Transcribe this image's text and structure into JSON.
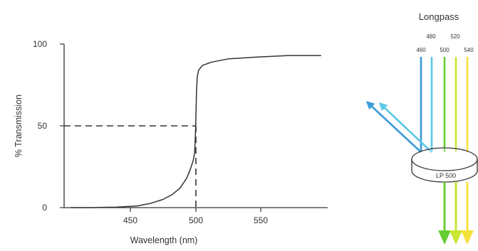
{
  "chart_data": {
    "type": "line",
    "title": "",
    "xlabel": "Wavelength (nm)",
    "ylabel": "% Transmission",
    "xlim": [
      400,
      600
    ],
    "ylim": [
      0,
      100
    ],
    "xticks": [
      450,
      500,
      550
    ],
    "yticks": [
      0,
      50,
      100
    ],
    "tick_labels": {
      "x": [
        "450",
        "500",
        "550"
      ],
      "y": [
        "0",
        "50",
        "100"
      ]
    },
    "grid": false,
    "legend": "none",
    "series": [
      {
        "x": [
          405,
          420,
          440,
          455,
          465,
          475,
          482,
          488,
          493,
          496,
          498,
          499,
          499.5,
          500,
          500.5,
          501,
          502,
          505,
          512,
          525,
          545,
          570,
          595
        ],
        "y": [
          0,
          0,
          0.3,
          1,
          2.5,
          5,
          8,
          12,
          18,
          24,
          29,
          33,
          42,
          55,
          72,
          80,
          84,
          87,
          89,
          91,
          92,
          93,
          93
        ]
      }
    ],
    "reference_lines": {
      "value": 50,
      "cut_on": 500
    },
    "colors": {
      "curve": "#333333",
      "axes": "#333333",
      "dashed": "#333333"
    }
  },
  "diagram": {
    "title": "Longpass",
    "filter_label": "LP 500",
    "beams": [
      {
        "label": "460",
        "color": "#3a9ad9",
        "passed": false
      },
      {
        "label": "480",
        "color": "#5cc8e6",
        "passed": false
      },
      {
        "label": "500",
        "color": "#66cc33",
        "passed": true
      },
      {
        "label": "520",
        "color": "#c8e632",
        "passed": true
      },
      {
        "label": "540",
        "color": "#f5e13c",
        "passed": true
      }
    ]
  }
}
